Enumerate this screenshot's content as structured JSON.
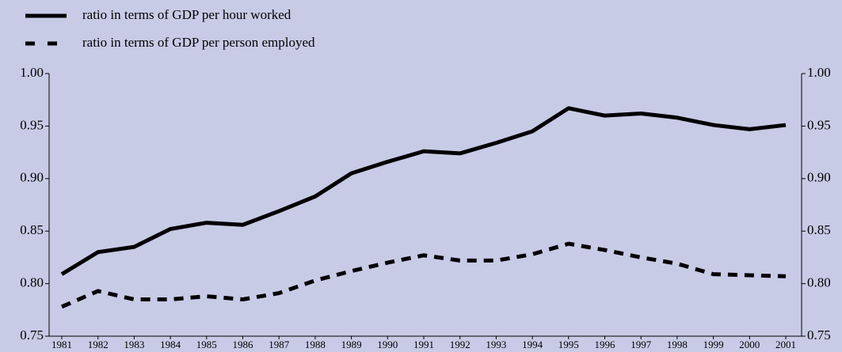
{
  "chart_data": {
    "type": "line",
    "categories": [
      "1981",
      "1982",
      "1983",
      "1984",
      "1985",
      "1986",
      "1987",
      "1988",
      "1989",
      "1990",
      "1991",
      "1992",
      "1993",
      "1994",
      "1995",
      "1996",
      "1997",
      "1998",
      "1999",
      "2000",
      "2001"
    ],
    "series": [
      {
        "name": "ratio in terms of GDP per hour worked",
        "color": "#000000",
        "dash": "solid",
        "values": [
          0.809,
          0.83,
          0.835,
          0.852,
          0.858,
          0.856,
          0.869,
          0.883,
          0.905,
          0.916,
          0.926,
          0.924,
          0.934,
          0.945,
          0.967,
          0.96,
          0.962,
          0.958,
          0.951,
          0.947,
          0.951
        ]
      },
      {
        "name": "ratio in terms of GDP per person employed",
        "color": "#000000",
        "dash": "dashed",
        "values": [
          0.778,
          0.793,
          0.785,
          0.785,
          0.788,
          0.785,
          0.791,
          0.803,
          0.812,
          0.82,
          0.827,
          0.822,
          0.822,
          0.828,
          0.838,
          0.832,
          0.825,
          0.819,
          0.809,
          0.808,
          0.807
        ]
      }
    ],
    "ylim": [
      0.75,
      1.0
    ],
    "yticks": [
      0.75,
      {
        "value": 0.8,
        "label": "0.80"
      },
      0.85,
      {
        "value": 0.9,
        "label": "0.90"
      },
      0.95,
      {
        "value": 1.0,
        "label": "1.00"
      }
    ],
    "legend": "top-left"
  }
}
